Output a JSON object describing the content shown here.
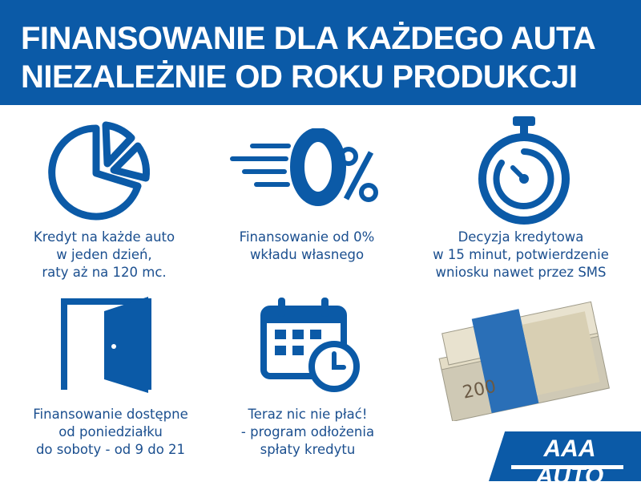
{
  "header": {
    "line1": "FINANSOWANIE DLA KAŻDEGO AUTA",
    "line2": "NIEZALEŻNIE OD ROKU PRODUKCJI"
  },
  "features": [
    {
      "icon": "pie-chart-icon",
      "lines": [
        "Kredyt na każde auto",
        "w jeden dzień,",
        "raty aż na 120 mc."
      ]
    },
    {
      "icon": "zero-percent-icon",
      "lines": [
        "Finansowanie od 0%",
        "wkładu własnego"
      ]
    },
    {
      "icon": "stopwatch-icon",
      "lines": [
        "Decyzja kredytowa",
        "w 15 minut, potwierdzenie",
        "wniosku nawet przez SMS"
      ]
    },
    {
      "icon": "door-icon",
      "lines": [
        "Finansowanie dostępne",
        "od poniedziałku",
        "do soboty - od 9 do 21"
      ]
    },
    {
      "icon": "calendar-clock-icon",
      "lines": [
        "Teraz nic nie płać!",
        "- program odłożenia",
        "spłaty kredytu"
      ]
    }
  ],
  "logo": {
    "text": "AAA AUTO"
  },
  "colors": {
    "brand_blue": "#0b5aa7",
    "caption": "#1b4f8f"
  }
}
